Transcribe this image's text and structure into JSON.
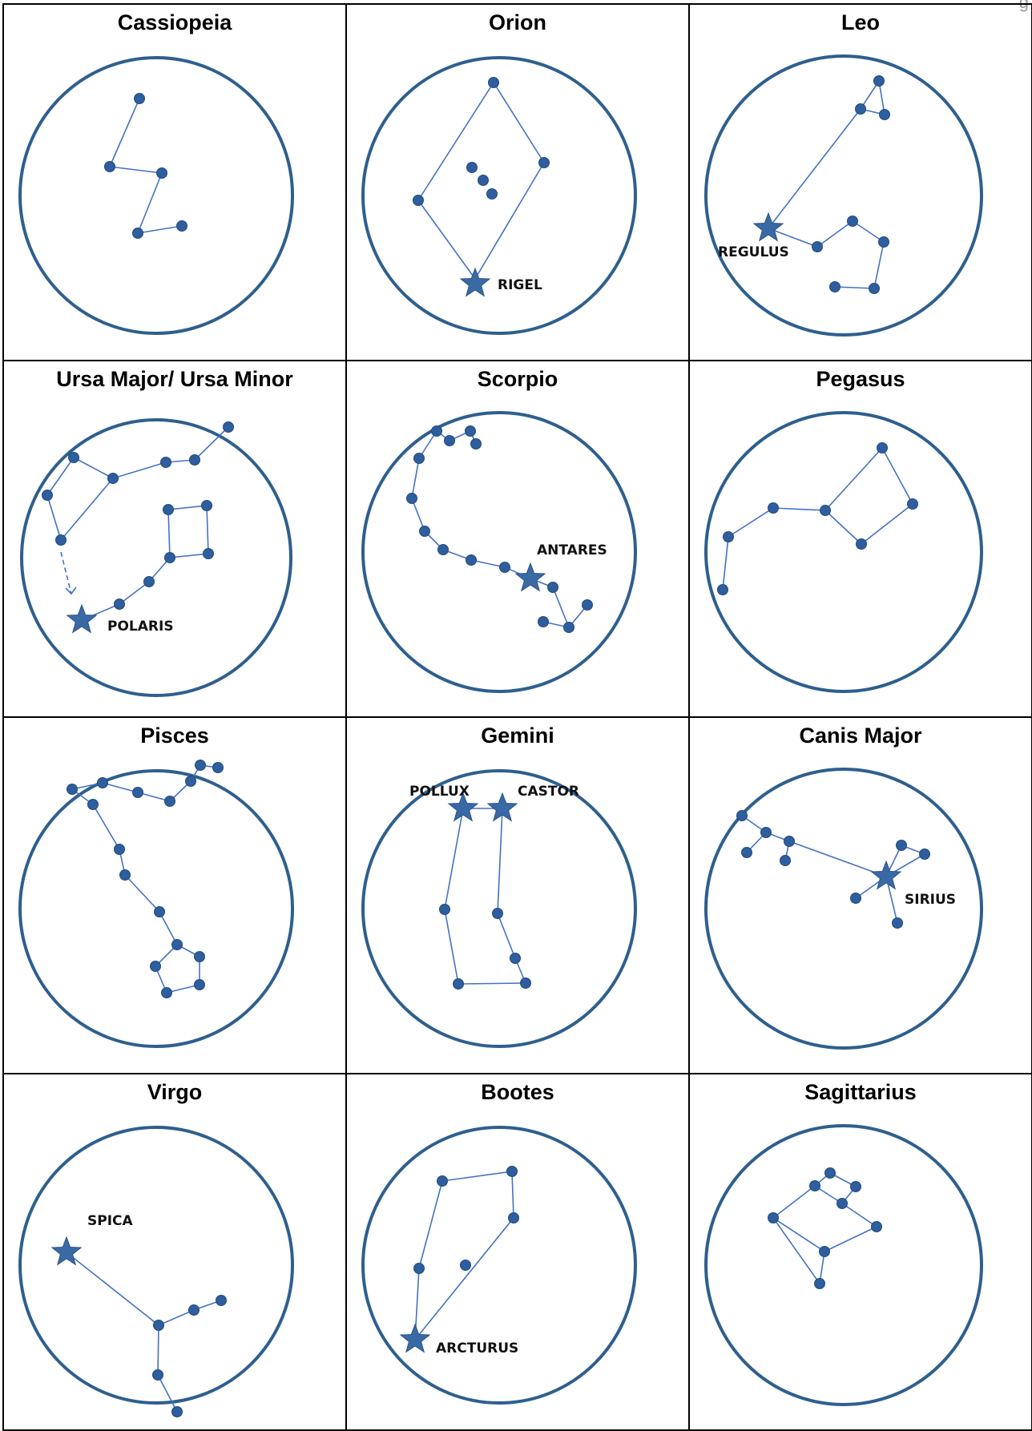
{
  "page": {
    "corner_fragment": "g"
  },
  "colors": {
    "line": "#4472C4",
    "dot": "#2E5E9E",
    "circle": "#2E5F8E",
    "grid": "#000000",
    "label": "#111111"
  },
  "constellations": [
    {
      "name": "Cassiopeia",
      "named_stars": []
    },
    {
      "name": "Orion",
      "named_stars": [
        "RIGEL"
      ]
    },
    {
      "name": "Leo",
      "named_stars": [
        "REGULUS"
      ]
    },
    {
      "name": "Ursa Major/ Ursa Minor",
      "named_stars": [
        "POLARIS"
      ]
    },
    {
      "name": "Scorpio",
      "named_stars": [
        "ANTARES"
      ]
    },
    {
      "name": "Pegasus",
      "named_stars": []
    },
    {
      "name": "Pisces",
      "named_stars": []
    },
    {
      "name": "Gemini",
      "named_stars": [
        "POLLUX",
        "CASTOR"
      ]
    },
    {
      "name": "Canis Major",
      "named_stars": [
        "SIRIUS"
      ]
    },
    {
      "name": "Virgo",
      "named_stars": [
        "SPICA"
      ]
    },
    {
      "name": "Bootes",
      "named_stars": [
        "ARCTURUS"
      ]
    },
    {
      "name": "Sagittarius",
      "named_stars": []
    }
  ]
}
